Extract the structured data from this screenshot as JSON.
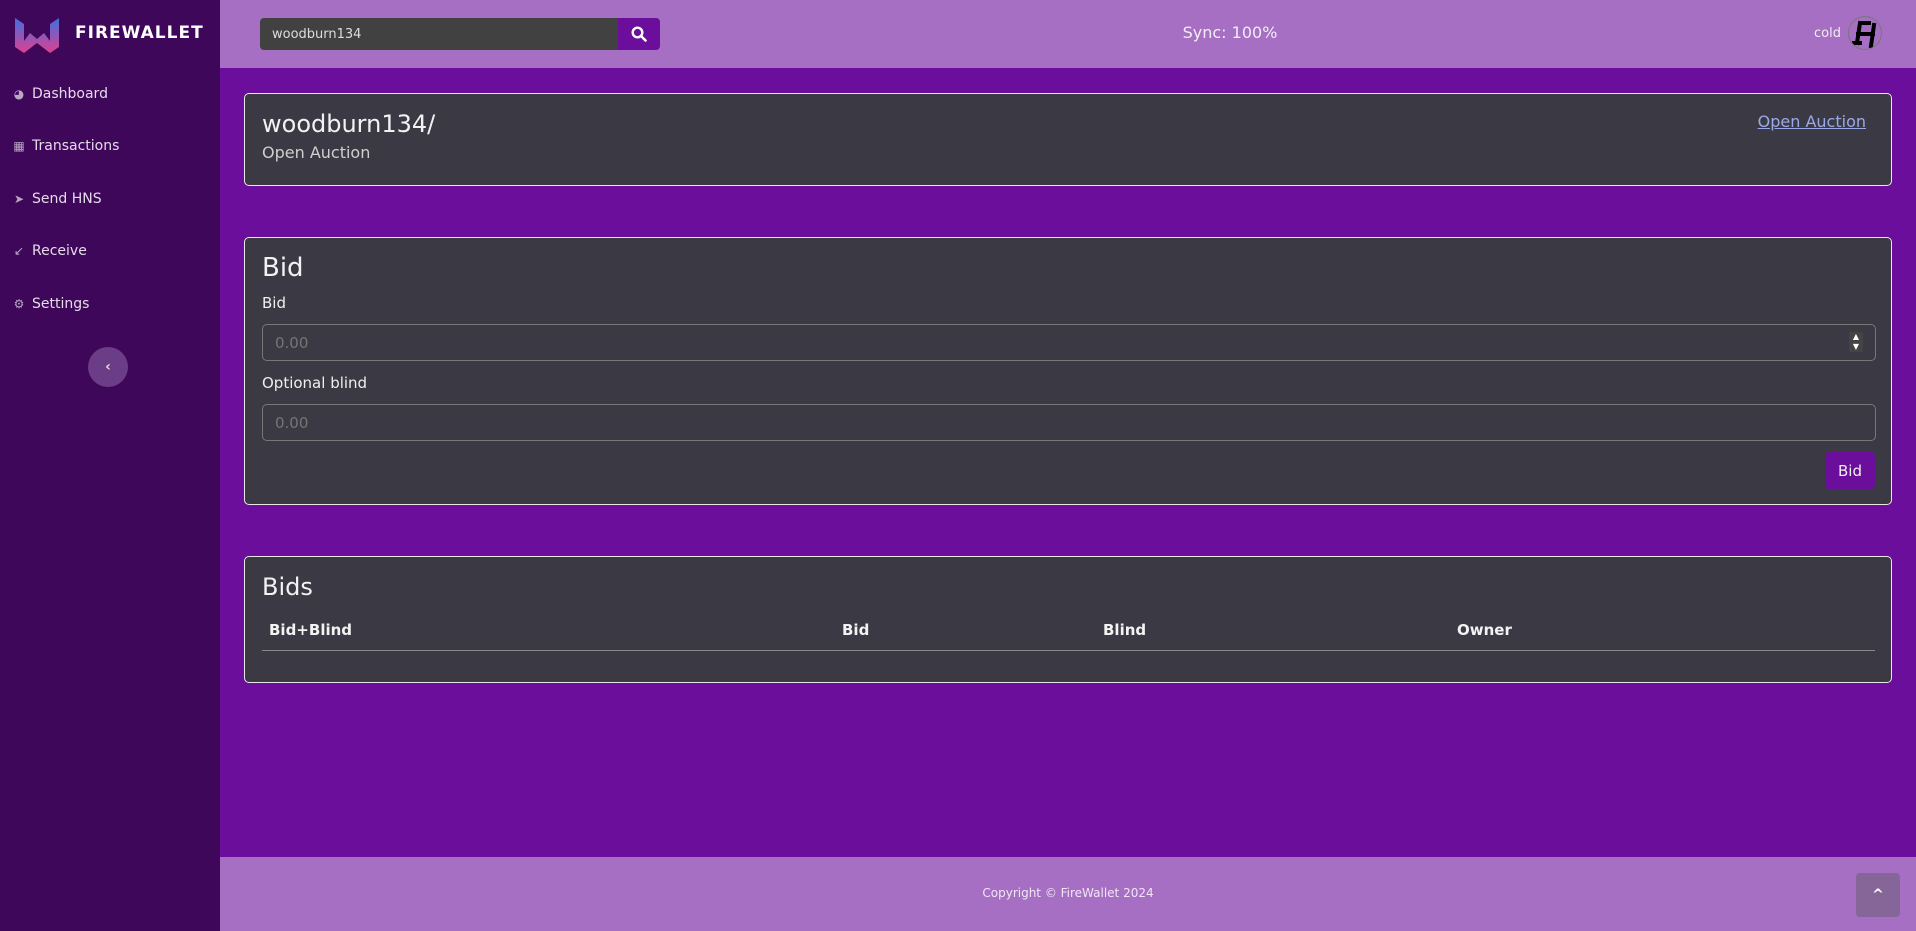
{
  "app": {
    "brand": "FIREWALLET"
  },
  "sidebar": {
    "items": [
      {
        "label": "Dashboard",
        "icon": "dashboard-icon"
      },
      {
        "label": "Transactions",
        "icon": "table-icon"
      },
      {
        "label": "Send HNS",
        "icon": "send-icon"
      },
      {
        "label": "Receive",
        "icon": "receive-arrow-icon"
      },
      {
        "label": "Settings",
        "icon": "gear-icon"
      }
    ]
  },
  "topbar": {
    "search_value": "woodburn134",
    "sync": "Sync: 100%",
    "account": "cold"
  },
  "domain": {
    "name": "woodburn134/",
    "status": "Open Auction",
    "action_link": "Open Auction"
  },
  "bid_form": {
    "title": "Bid",
    "bid_label": "Bid",
    "bid_placeholder": "0.00",
    "blind_label": "Optional blind",
    "blind_placeholder": "0.00",
    "submit": "Bid"
  },
  "bids": {
    "title": "Bids",
    "columns": [
      "Bid+Blind",
      "Bid",
      "Blind",
      "Owner"
    ],
    "rows": []
  },
  "footer": {
    "copyright": "Copyright © FireWallet 2024"
  },
  "colors": {
    "sidebar": "#3f0759",
    "topbar": "#a66fc3",
    "main": "#6a0e9b",
    "card": "#3b3a44"
  }
}
